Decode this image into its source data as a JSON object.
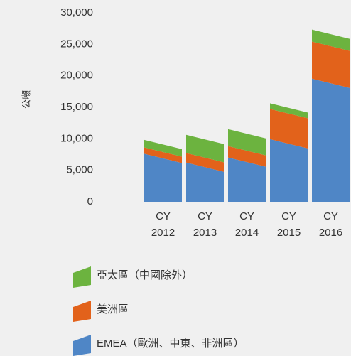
{
  "chart_data": {
    "type": "bar",
    "stacked": true,
    "ylabel": "公噸",
    "categories": [
      "CY 2012",
      "CY 2013",
      "CY 2014",
      "CY 2015",
      "CY 2016"
    ],
    "series": [
      {
        "name": "EMEA（歐洲、中東、非洲區）",
        "color": "#4f86c6",
        "values": [
          6900,
          5500,
          6300,
          9200,
          18800
        ]
      },
      {
        "name": "美洲區",
        "color": "#e2621b",
        "values": [
          1000,
          1500,
          1800,
          4800,
          5900
        ]
      },
      {
        "name": "亞太區（中國除外）",
        "color": "#6cb33f",
        "values": [
          1200,
          2900,
          2700,
          900,
          1900
        ]
      }
    ],
    "ylim": [
      0,
      30000
    ],
    "yticks": [
      0,
      {
        "value": 5000,
        "label": "5,000"
      },
      {
        "value": 10000,
        "label": "10,000"
      },
      {
        "value": 15000,
        "label": "15,000"
      },
      {
        "value": 20000,
        "label": "20,000"
      },
      {
        "value": 25000,
        "label": "25,000"
      },
      {
        "value": 30000,
        "label": "30,000"
      }
    ],
    "grid": false
  }
}
